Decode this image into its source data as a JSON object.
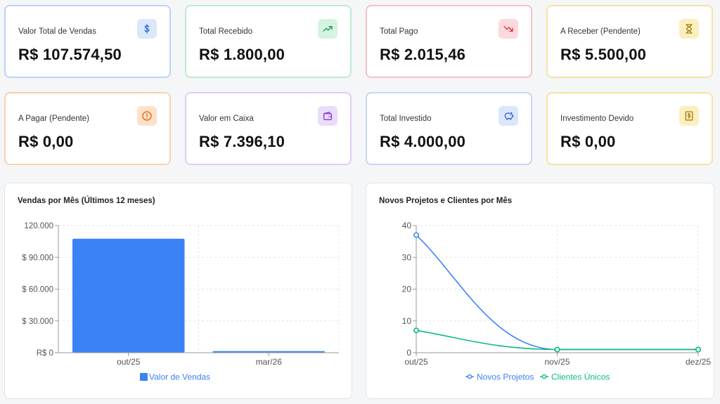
{
  "cards": [
    {
      "title": "Valor Total de Vendas",
      "value": "R$ 107.574,50",
      "icon": "dollar-icon",
      "border": "#bcd3f6",
      "icon_bg": "#dbe7fb",
      "icon_color": "#2f6bd6"
    },
    {
      "title": "Total Recebido",
      "value": "R$ 1.800,00",
      "icon": "trending-up-icon",
      "border": "#bfeacf",
      "icon_bg": "#d6f3e0",
      "icon_color": "#1e9a52"
    },
    {
      "title": "Total Pago",
      "value": "R$ 2.015,46",
      "icon": "trending-down-icon",
      "border": "#f5c2c7",
      "icon_bg": "#fbd9dc",
      "icon_color": "#d9323f"
    },
    {
      "title": "A Receber (Pendente)",
      "value": "R$ 5.500,00",
      "icon": "hourglass-icon",
      "border": "#f6e3a1",
      "icon_bg": "#fbefc0",
      "icon_color": "#a77a0a"
    },
    {
      "title": "A Pagar (Pendente)",
      "value": "R$ 0,00",
      "icon": "alert-circle-icon",
      "border": "#f8d2ad",
      "icon_bg": "#fde2c8",
      "icon_color": "#d9621a"
    },
    {
      "title": "Valor em Caixa",
      "value": "R$ 7.396,10",
      "icon": "wallet-icon",
      "border": "#e0cdf5",
      "icon_bg": "#eadcfb",
      "icon_color": "#8a3fd1"
    },
    {
      "title": "Total Investido",
      "value": "R$ 4.000,00",
      "icon": "piggy-bank-icon",
      "border": "#c6d6f5",
      "icon_bg": "#dbe6fb",
      "icon_color": "#2f5fd0"
    },
    {
      "title": "Investimento Devido",
      "value": "R$ 0,00",
      "icon": "receipt-dollar-icon",
      "border": "#f6e3a1",
      "icon_bg": "#fbefc0",
      "icon_color": "#a77a0a"
    }
  ],
  "sales_chart": {
    "title": "Vendas por Mês (Últimos 12 meses)",
    "chart_data": {
      "type": "bar",
      "categories": [
        "out/25",
        "mar/26"
      ],
      "series": [
        {
          "name": "Valor de Vendas",
          "values": [
            107574.5,
            1500
          ],
          "color": "#3b82f6"
        }
      ],
      "ylim": [
        0,
        120000
      ],
      "yticks": [
        0,
        30000,
        60000,
        90000,
        120000
      ],
      "ytick_labels": [
        "R$ 0",
        "$ 30.000",
        "$ 60.000",
        "$ 90.000",
        "120.000"
      ],
      "grid": true,
      "legend": "bottom"
    }
  },
  "projects_chart": {
    "title": "Novos Projetos e Clientes por Mês",
    "chart_data": {
      "type": "line",
      "categories": [
        "out/25",
        "nov/25",
        "dez/25"
      ],
      "series": [
        {
          "name": "Novos Projetos",
          "values": [
            37,
            1,
            1
          ],
          "color": "#3b82f6"
        },
        {
          "name": "Clientes Únicos",
          "values": [
            7,
            1,
            1
          ],
          "color": "#10b981"
        }
      ],
      "ylim": [
        0,
        40
      ],
      "yticks": [
        0,
        10,
        20,
        30,
        40
      ],
      "grid": true,
      "legend": "bottom"
    }
  }
}
